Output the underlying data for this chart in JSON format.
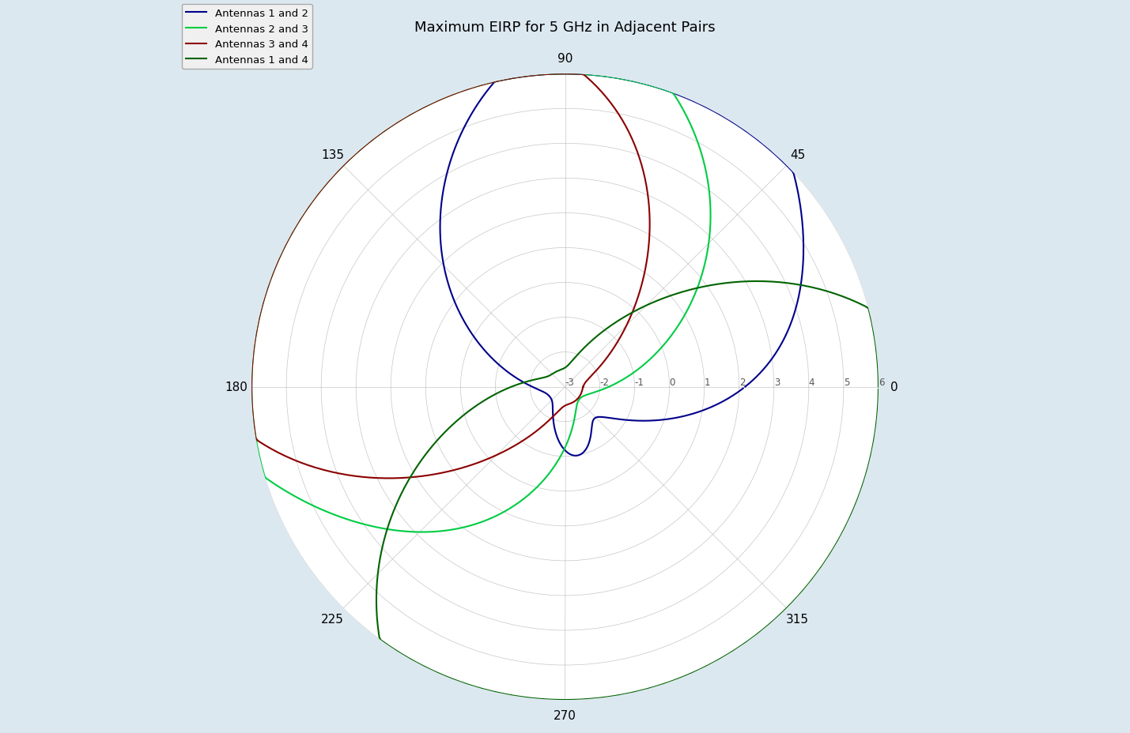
{
  "title": "Maximum EIRP for 5 GHz in Adjacent Pairs",
  "legend": [
    "Antennas 1 and 2",
    "Antennas 2 and 3",
    "Antennas 3 and 4",
    "Antennas 1 and 4"
  ],
  "colors": [
    "#00008B",
    "#00CC44",
    "#8B0000",
    "#006400"
  ],
  "r_min": -3,
  "r_max": 6,
  "r_ticks": [
    -3,
    -2,
    -1,
    0,
    1,
    2,
    3,
    4,
    5,
    6
  ],
  "angle_labels": [
    "0",
    "45",
    "90",
    "135",
    "180",
    "225",
    "270",
    "315"
  ],
  "background_color": "#dce8f0",
  "figsize": [
    14.29,
    9.29
  ]
}
